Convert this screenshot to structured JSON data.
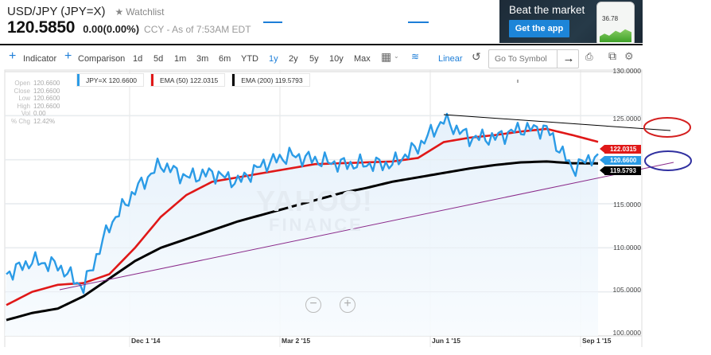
{
  "header": {
    "title": "USD/JPY (JPY=X)",
    "watchlist_label": "Watchlist",
    "price": "120.5850",
    "change": "0.00(0.00%)",
    "as_of": "CCY - As of 7:53AM EDT"
  },
  "ad": {
    "headline": "Beat the market",
    "button_label": "Get the app",
    "phone_value": "36.78"
  },
  "toolbar": {
    "indicator_label": "Indicator",
    "comparison_label": "Comparison",
    "ranges": [
      "1d",
      "5d",
      "1m",
      "3m",
      "6m",
      "YTD",
      "1y",
      "2y",
      "5y",
      "10y",
      "Max"
    ],
    "active_range": "1y",
    "scale_label": "Linear",
    "symbol_placeholder": "Go To Symbol"
  },
  "ohlc": [
    {
      "k": "Open",
      "v": "120.6600"
    },
    {
      "k": "Close",
      "v": "120.6600"
    },
    {
      "k": "Low",
      "v": "120.6600"
    },
    {
      "k": "High",
      "v": "120.6600"
    },
    {
      "k": "Vol",
      "v": "0.00"
    },
    {
      "k": "% Chg",
      "v": "12.42%"
    }
  ],
  "legend": [
    {
      "label": "JPY=X 120.6600",
      "color": "#2b9be6"
    },
    {
      "label": "EMA (50) 122.0315",
      "color": "#e01818"
    },
    {
      "label": "EMA (200) 119.5793",
      "color": "#000000"
    }
  ],
  "price_tags": [
    {
      "label": "122.0315",
      "color": "#e01818"
    },
    {
      "label": "120.6600",
      "color": "#2b9be6"
    },
    {
      "label": "119.5793",
      "color": "#000000"
    }
  ],
  "watermark": {
    "line1": "YAHOO!",
    "line2": "FINANCE"
  },
  "chart_data": {
    "type": "line",
    "title": "USD/JPY (JPY=X) 1y",
    "xlabel": "",
    "ylabel": "",
    "ylim": [
      100,
      130
    ],
    "y_ticks": [
      "130.0000",
      "125.0000",
      "120.0000",
      "115.0000",
      "110.0000",
      "105.0000",
      "100.0000"
    ],
    "x_ticks": [
      "Dec 1 '14",
      "Mar 2 '15",
      "Jun 1 '15",
      "Sep 1 '15"
    ],
    "grid": true,
    "legend_position": "top-left",
    "x": [
      "Sep '14",
      "Oct '14 start",
      "Oct '14 mid",
      "Oct '14 end",
      "Nov '14 start",
      "Nov '14 mid",
      "Dec 1 '14",
      "Dec '14 mid",
      "Jan '15",
      "Jan '15 mid",
      "Feb '15",
      "Mar 2 '15",
      "Mar '15 mid",
      "Apr '15",
      "Apr '15 mid",
      "May '15",
      "May '15 mid",
      "Jun 1 '15",
      "Jun '15 mid",
      "Jul '15",
      "Jul '15 mid",
      "Aug '15",
      "Aug '15 late",
      "Sep 1 '15"
    ],
    "series": [
      {
        "name": "JPY=X",
        "color": "#2b9be6",
        "values": [
          107.0,
          108.5,
          108.0,
          105.5,
          112.5,
          116.5,
          119.5,
          118.0,
          118.5,
          117.5,
          119.5,
          120.5,
          120.0,
          119.5,
          119.5,
          119.5,
          121.5,
          124.5,
          122.5,
          122.5,
          123.5,
          123.5,
          119.0,
          120.66
        ]
      },
      {
        "name": "EMA (50)",
        "color": "#e01818",
        "values": [
          103.5,
          105.0,
          105.8,
          106.0,
          107.0,
          110.0,
          113.5,
          116.0,
          117.5,
          118.0,
          118.5,
          119.0,
          119.5,
          119.6,
          119.7,
          119.8,
          120.2,
          122.0,
          122.5,
          122.8,
          123.2,
          123.5,
          122.8,
          122.03
        ]
      },
      {
        "name": "EMA (200)",
        "color": "#000000",
        "values": [
          101.8,
          102.6,
          103.1,
          104.5,
          106.5,
          108.5,
          110.0,
          111.0,
          112.0,
          113.0,
          113.8,
          114.6,
          115.4,
          116.2,
          116.8,
          117.5,
          118.0,
          118.5,
          119.0,
          119.4,
          119.7,
          119.8,
          119.6,
          119.58
        ]
      }
    ],
    "annotations": [
      {
        "type": "trendline",
        "color": "#000000",
        "from": [
          "Jun '15",
          125.4
        ],
        "to": [
          "right edge",
          124.2
        ]
      },
      {
        "type": "trendline",
        "color": "#8a2a8a",
        "from": [
          "Oct '14 end",
          105.5
        ],
        "to": [
          "right edge",
          120.5
        ]
      },
      {
        "type": "ellipse",
        "color": "#d42020",
        "around": "top trendline end"
      },
      {
        "type": "ellipse",
        "color": "#3030a0",
        "around": "bottom trendline end"
      }
    ]
  }
}
